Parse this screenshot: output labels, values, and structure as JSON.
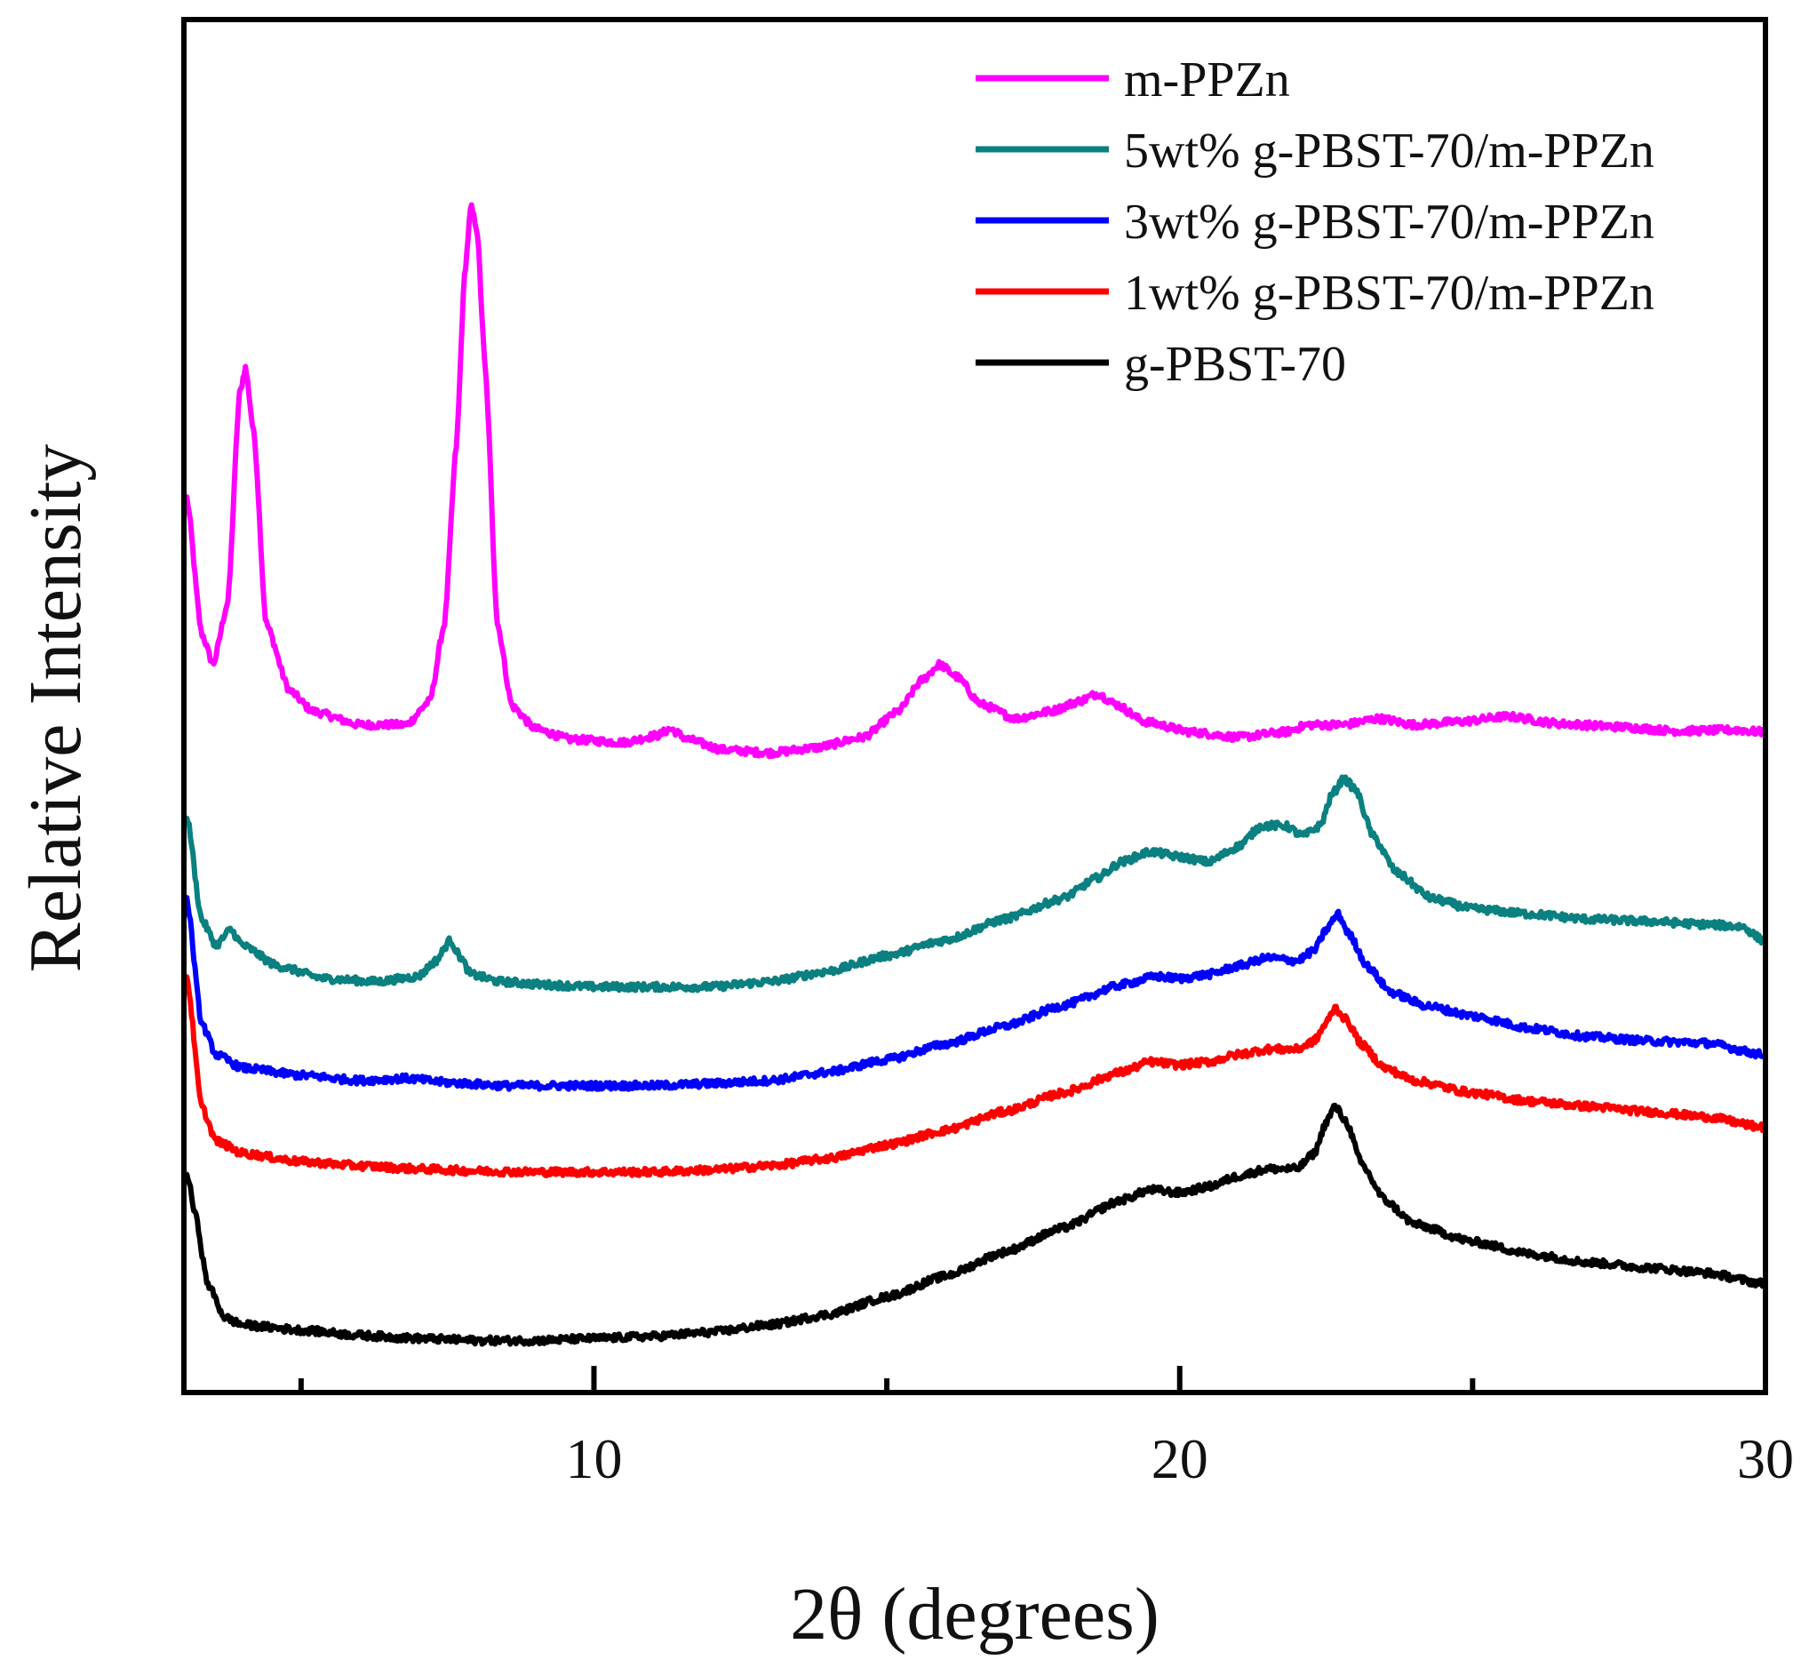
{
  "chart_data": {
    "type": "line",
    "title": "",
    "xlabel": "2θ (degrees)",
    "ylabel": "Relative Intensity",
    "xlim": [
      3,
      30
    ],
    "ylim": [
      0,
      13.2
    ],
    "x_ticks": [
      10,
      20,
      30
    ],
    "x_minor_ticks": [
      5,
      15,
      25
    ],
    "y_ticks_shown": false,
    "legend_position": "top-right",
    "series": [
      {
        "name": "m-PPZn",
        "color": "#ff00ff",
        "points": [
          [
            3.05,
            8.6
          ],
          [
            3.3,
            7.3
          ],
          [
            3.5,
            7.0
          ],
          [
            3.75,
            7.6
          ],
          [
            3.95,
            9.6
          ],
          [
            4.05,
            9.85
          ],
          [
            4.2,
            9.2
          ],
          [
            4.4,
            7.4
          ],
          [
            4.8,
            6.75
          ],
          [
            5.2,
            6.55
          ],
          [
            6.0,
            6.42
          ],
          [
            6.8,
            6.42
          ],
          [
            7.2,
            6.65
          ],
          [
            7.45,
            7.4
          ],
          [
            7.65,
            9.1
          ],
          [
            7.8,
            10.8
          ],
          [
            7.9,
            11.4
          ],
          [
            8.0,
            11.2
          ],
          [
            8.15,
            9.8
          ],
          [
            8.35,
            7.4
          ],
          [
            8.6,
            6.6
          ],
          [
            9.0,
            6.38
          ],
          [
            9.6,
            6.28
          ],
          [
            10.5,
            6.25
          ],
          [
            11.1,
            6.32
          ],
          [
            11.3,
            6.38
          ],
          [
            11.6,
            6.28
          ],
          [
            12.2,
            6.18
          ],
          [
            13.0,
            6.15
          ],
          [
            13.8,
            6.2
          ],
          [
            14.6,
            6.3
          ],
          [
            15.2,
            6.55
          ],
          [
            15.6,
            6.85
          ],
          [
            15.9,
            7.0
          ],
          [
            16.2,
            6.88
          ],
          [
            16.6,
            6.62
          ],
          [
            17.2,
            6.48
          ],
          [
            17.8,
            6.55
          ],
          [
            18.3,
            6.65
          ],
          [
            18.6,
            6.72
          ],
          [
            18.9,
            6.62
          ],
          [
            19.4,
            6.45
          ],
          [
            20.2,
            6.35
          ],
          [
            21.0,
            6.3
          ],
          [
            21.8,
            6.35
          ],
          [
            22.2,
            6.42
          ],
          [
            22.8,
            6.42
          ],
          [
            23.4,
            6.48
          ],
          [
            24.0,
            6.42
          ],
          [
            24.8,
            6.45
          ],
          [
            25.6,
            6.5
          ],
          [
            26.5,
            6.43
          ],
          [
            27.5,
            6.4
          ],
          [
            28.5,
            6.36
          ],
          [
            29.5,
            6.37
          ],
          [
            29.95,
            6.35
          ]
        ]
      },
      {
        "name": "5wt% g-PBST-70/m-PPZn",
        "color": "#0a8080",
        "points": [
          [
            3.05,
            5.55
          ],
          [
            3.3,
            4.55
          ],
          [
            3.55,
            4.3
          ],
          [
            3.8,
            4.45
          ],
          [
            4.0,
            4.3
          ],
          [
            4.6,
            4.1
          ],
          [
            5.4,
            3.98
          ],
          [
            6.3,
            3.95
          ],
          [
            7.0,
            4.0
          ],
          [
            7.3,
            4.15
          ],
          [
            7.55,
            4.35
          ],
          [
            7.7,
            4.2
          ],
          [
            7.9,
            4.02
          ],
          [
            8.4,
            3.95
          ],
          [
            9.2,
            3.92
          ],
          [
            10.0,
            3.9
          ],
          [
            11.0,
            3.9
          ],
          [
            12.0,
            3.9
          ],
          [
            13.0,
            3.95
          ],
          [
            14.0,
            4.05
          ],
          [
            15.0,
            4.2
          ],
          [
            16.0,
            4.35
          ],
          [
            17.0,
            4.55
          ],
          [
            18.0,
            4.75
          ],
          [
            18.6,
            4.95
          ],
          [
            19.0,
            5.1
          ],
          [
            19.5,
            5.2
          ],
          [
            20.0,
            5.15
          ],
          [
            20.5,
            5.1
          ],
          [
            21.0,
            5.25
          ],
          [
            21.4,
            5.45
          ],
          [
            21.8,
            5.45
          ],
          [
            22.1,
            5.35
          ],
          [
            22.4,
            5.45
          ],
          [
            22.6,
            5.75
          ],
          [
            22.8,
            5.9
          ],
          [
            23.0,
            5.8
          ],
          [
            23.3,
            5.35
          ],
          [
            23.7,
            5.0
          ],
          [
            24.3,
            4.75
          ],
          [
            25.0,
            4.65
          ],
          [
            26.0,
            4.6
          ],
          [
            27.0,
            4.55
          ],
          [
            28.0,
            4.53
          ],
          [
            29.0,
            4.5
          ],
          [
            29.6,
            4.48
          ],
          [
            29.95,
            4.35
          ]
        ]
      },
      {
        "name": "3wt% g-PBST-70/m-PPZn",
        "color": "#0000ff",
        "points": [
          [
            3.05,
            4.75
          ],
          [
            3.3,
            3.55
          ],
          [
            3.55,
            3.25
          ],
          [
            4.0,
            3.12
          ],
          [
            5.0,
            3.05
          ],
          [
            6.0,
            3.0
          ],
          [
            6.8,
            3.02
          ],
          [
            7.5,
            2.98
          ],
          [
            8.5,
            2.95
          ],
          [
            10.0,
            2.95
          ],
          [
            11.0,
            2.95
          ],
          [
            12.0,
            2.97
          ],
          [
            13.0,
            3.0
          ],
          [
            14.0,
            3.08
          ],
          [
            15.0,
            3.2
          ],
          [
            16.0,
            3.35
          ],
          [
            17.0,
            3.52
          ],
          [
            18.0,
            3.72
          ],
          [
            19.0,
            3.92
          ],
          [
            19.6,
            4.0
          ],
          [
            20.0,
            3.98
          ],
          [
            20.5,
            4.02
          ],
          [
            21.0,
            4.1
          ],
          [
            21.5,
            4.18
          ],
          [
            22.0,
            4.15
          ],
          [
            22.3,
            4.25
          ],
          [
            22.5,
            4.45
          ],
          [
            22.7,
            4.6
          ],
          [
            22.9,
            4.4
          ],
          [
            23.2,
            4.1
          ],
          [
            23.6,
            3.85
          ],
          [
            24.2,
            3.72
          ],
          [
            25.0,
            3.62
          ],
          [
            26.0,
            3.5
          ],
          [
            27.0,
            3.42
          ],
          [
            28.0,
            3.38
          ],
          [
            29.0,
            3.36
          ],
          [
            29.95,
            3.25
          ]
        ]
      },
      {
        "name": "1wt% g-PBST-70/m-PPZn",
        "color": "#ff0000",
        "points": [
          [
            3.05,
            4.0
          ],
          [
            3.3,
            2.75
          ],
          [
            3.55,
            2.42
          ],
          [
            4.0,
            2.3
          ],
          [
            5.0,
            2.22
          ],
          [
            6.0,
            2.18
          ],
          [
            7.0,
            2.15
          ],
          [
            8.0,
            2.13
          ],
          [
            9.0,
            2.12
          ],
          [
            10.0,
            2.12
          ],
          [
            11.0,
            2.12
          ],
          [
            12.0,
            2.14
          ],
          [
            13.0,
            2.18
          ],
          [
            14.0,
            2.25
          ],
          [
            15.0,
            2.38
          ],
          [
            16.0,
            2.52
          ],
          [
            17.0,
            2.7
          ],
          [
            18.0,
            2.88
          ],
          [
            19.0,
            3.08
          ],
          [
            19.5,
            3.18
          ],
          [
            20.0,
            3.15
          ],
          [
            20.5,
            3.18
          ],
          [
            21.0,
            3.25
          ],
          [
            21.5,
            3.3
          ],
          [
            22.0,
            3.3
          ],
          [
            22.3,
            3.38
          ],
          [
            22.5,
            3.55
          ],
          [
            22.65,
            3.7
          ],
          [
            22.85,
            3.58
          ],
          [
            23.1,
            3.35
          ],
          [
            23.5,
            3.12
          ],
          [
            24.0,
            3.0
          ],
          [
            25.0,
            2.88
          ],
          [
            26.0,
            2.8
          ],
          [
            27.0,
            2.75
          ],
          [
            28.0,
            2.7
          ],
          [
            29.0,
            2.65
          ],
          [
            29.95,
            2.55
          ]
        ]
      },
      {
        "name": "g-PBST-70",
        "color": "#000000",
        "points": [
          [
            3.05,
            2.1
          ],
          [
            3.2,
            1.7
          ],
          [
            3.4,
            1.05
          ],
          [
            3.7,
            0.72
          ],
          [
            4.0,
            0.65
          ],
          [
            5.0,
            0.6
          ],
          [
            6.0,
            0.55
          ],
          [
            7.0,
            0.52
          ],
          [
            8.0,
            0.5
          ],
          [
            9.0,
            0.5
          ],
          [
            10.0,
            0.52
          ],
          [
            11.0,
            0.54
          ],
          [
            12.0,
            0.58
          ],
          [
            13.0,
            0.65
          ],
          [
            14.0,
            0.75
          ],
          [
            15.0,
            0.92
          ],
          [
            16.0,
            1.12
          ],
          [
            17.0,
            1.35
          ],
          [
            18.0,
            1.58
          ],
          [
            19.0,
            1.85
          ],
          [
            19.5,
            1.95
          ],
          [
            20.0,
            1.92
          ],
          [
            20.5,
            1.98
          ],
          [
            21.0,
            2.08
          ],
          [
            21.5,
            2.15
          ],
          [
            22.0,
            2.15
          ],
          [
            22.3,
            2.3
          ],
          [
            22.5,
            2.6
          ],
          [
            22.65,
            2.75
          ],
          [
            22.85,
            2.6
          ],
          [
            23.1,
            2.2
          ],
          [
            23.5,
            1.85
          ],
          [
            24.0,
            1.62
          ],
          [
            25.0,
            1.45
          ],
          [
            26.0,
            1.33
          ],
          [
            27.0,
            1.25
          ],
          [
            28.0,
            1.2
          ],
          [
            29.0,
            1.15
          ],
          [
            29.95,
            1.05
          ]
        ]
      }
    ]
  }
}
